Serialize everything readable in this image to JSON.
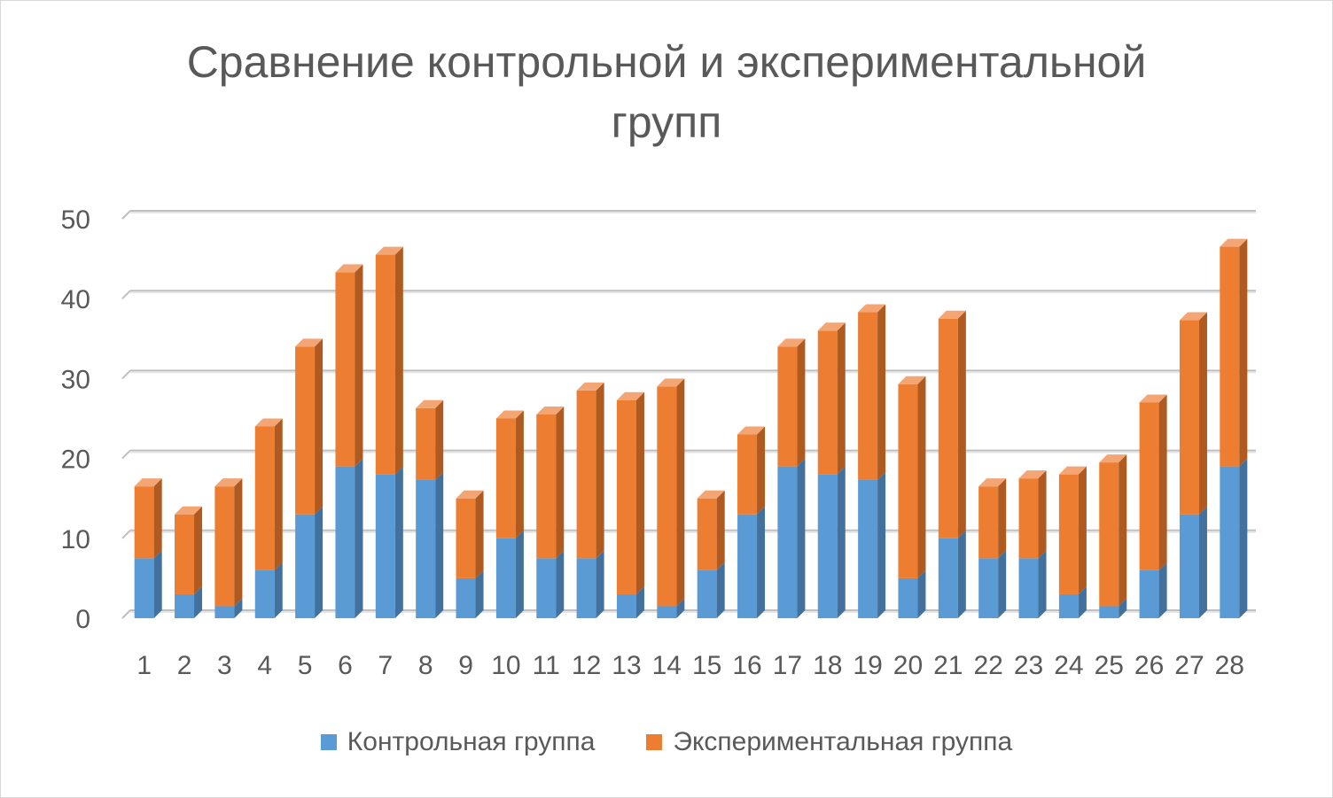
{
  "chart_data": {
    "type": "bar",
    "stacked": true,
    "style": "3d-column",
    "title": "Сравнение контрольной и экспериментальной групп",
    "title_lines": [
      "Сравнение контрольной и экспериментальной",
      "групп"
    ],
    "xlabel": "",
    "ylabel": "",
    "ylim": [
      0,
      50
    ],
    "yticks": [
      0,
      10,
      20,
      30,
      40,
      50
    ],
    "grid": true,
    "legend_position": "bottom",
    "categories": [
      "1",
      "2",
      "3",
      "4",
      "5",
      "6",
      "7",
      "8",
      "9",
      "10",
      "11",
      "12",
      "13",
      "14",
      "15",
      "16",
      "17",
      "18",
      "19",
      "20",
      "21",
      "22",
      "23",
      "24",
      "25",
      "26",
      "27",
      "28"
    ],
    "series": [
      {
        "name": "Контрольная группа",
        "color": "#5b9bd5",
        "side_color": "#41719c",
        "top_color": "#8fbbe6",
        "values": [
          7.5,
          3,
          1.5,
          6,
          13,
          19,
          18,
          17.3,
          5,
          10,
          7.5,
          7.5,
          3,
          1.5,
          6,
          13,
          19,
          18,
          17.3,
          5,
          10,
          7.5,
          7.5,
          3,
          1.5,
          6,
          13,
          19
        ]
      },
      {
        "name": "Экспериментальная группа",
        "color": "#ed7d31",
        "side_color": "#ae5a21",
        "top_color": "#f4a574",
        "values": [
          9,
          10,
          15,
          18,
          21,
          24.3,
          27.5,
          9,
          10,
          15,
          18,
          21,
          24.3,
          27.5,
          9,
          10,
          15,
          18,
          21,
          24.3,
          27.5,
          9,
          10,
          15,
          18,
          21,
          24.3,
          27.5
        ]
      }
    ]
  }
}
